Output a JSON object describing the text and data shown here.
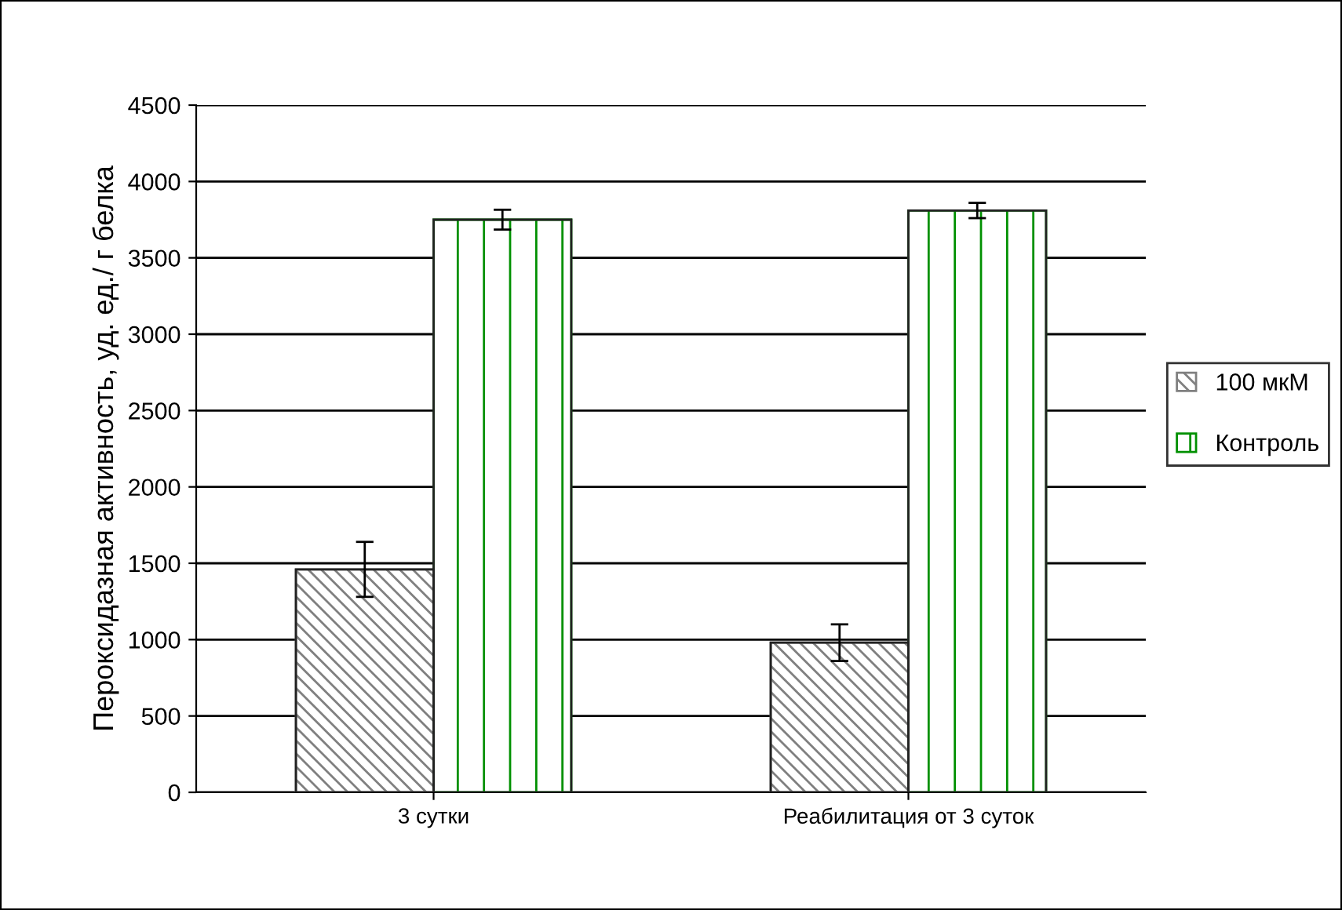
{
  "chart_data": {
    "type": "bar",
    "ylabel": "Пероксидазная активность, уд. ед./ г белка",
    "categories": [
      "3 сутки",
      "Реабилитация от 3 суток"
    ],
    "series": [
      {
        "name": "100 мкМ",
        "color": "#808080",
        "values": [
          1460,
          980
        ],
        "errors": [
          180,
          120
        ]
      },
      {
        "name": "Контроль",
        "color": "#009000",
        "values": [
          3750,
          3810
        ],
        "errors": [
          65,
          50
        ]
      }
    ],
    "ylim": [
      0,
      4500
    ],
    "yticks": [
      0,
      500,
      1000,
      1500,
      2000,
      2500,
      3000,
      3500,
      4000,
      4500
    ],
    "grid": "y",
    "legend": "right"
  }
}
